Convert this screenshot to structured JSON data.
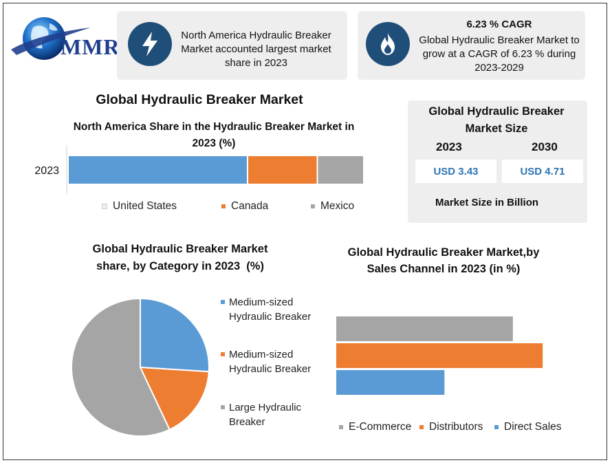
{
  "logo": {
    "text": "MMR"
  },
  "info_left": {
    "icon": "lightning-bolt-icon",
    "text": "North America Hydraulic Breaker Market accounted largest market share in 2023"
  },
  "info_right": {
    "icon": "flame-icon",
    "headline": "6.23 % CAGR",
    "text": "Global Hydraulic Breaker Market to grow at a CAGR of 6.23 % during 2023-2029"
  },
  "main_title": "Global Hydraulic Breaker Market",
  "market_size": {
    "title": "Global Hydraulic Breaker Market Size",
    "year1": "2023",
    "year2": "2030",
    "value1": "USD 3.43",
    "value2": "USD 4.71",
    "note": "Market Size in Billion"
  },
  "colors": {
    "blue": "#5b9bd5",
    "orange": "#ed7d31",
    "gray": "#a5a5a5",
    "navy": "#1f4e79"
  },
  "chart_data": [
    {
      "type": "bar",
      "orientation": "horizontal-stacked",
      "title": "North America Share in the Hydraulic Breaker Market in 2023 (%)",
      "categories": [
        "2023"
      ],
      "series": [
        {
          "name": "United States",
          "values": [
            60.7
          ],
          "color": "#5b9bd5"
        },
        {
          "name": "Canada",
          "values": [
            23.6
          ],
          "color": "#ed7d31"
        },
        {
          "name": "Mexico",
          "values": [
            15.7
          ],
          "color": "#a5a5a5"
        }
      ],
      "legend": "bottom"
    },
    {
      "type": "pie",
      "title": "Global Hydraulic Breaker Market share, by Category in 2023  (%)",
      "labels": [
        "Medium-sized Hydraulic Breaker",
        "Medium-sized Hydraulic Breaker",
        "Large Hydraulic Breaker"
      ],
      "values": [
        26,
        17,
        57
      ],
      "colors": [
        "#5b9bd5",
        "#ed7d31",
        "#a5a5a5"
      ],
      "legend": "right"
    },
    {
      "type": "bar",
      "orientation": "horizontal",
      "title": "Global Hydraulic Breaker Market,by Sales Channel in 2023 (in %)",
      "series": [
        {
          "name": "E-Commerce",
          "values": [
            33.8
          ],
          "color": "#a5a5a5"
        },
        {
          "name": "Distributors",
          "values": [
            39.5
          ],
          "color": "#ed7d31"
        },
        {
          "name": "Direct Sales",
          "values": [
            20.7
          ],
          "color": "#5b9bd5"
        }
      ],
      "legend": "bottom"
    }
  ]
}
